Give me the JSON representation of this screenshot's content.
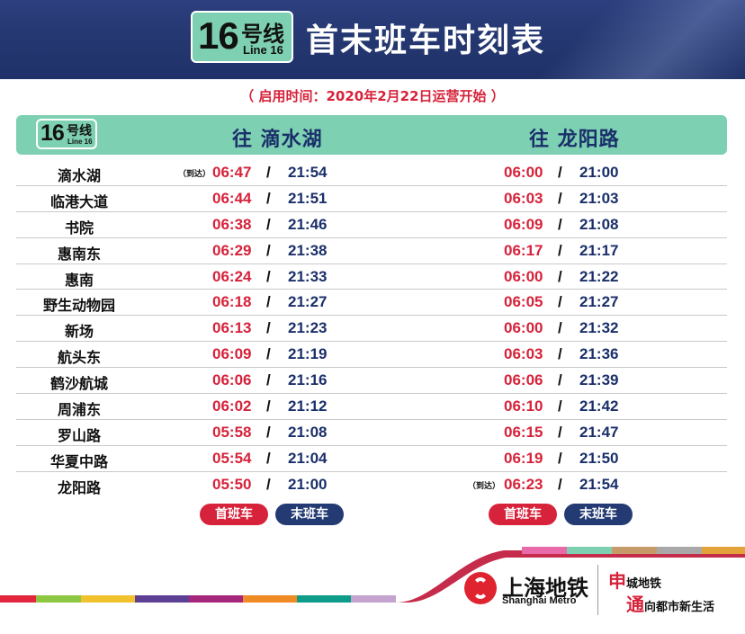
{
  "header": {
    "line_number": "16",
    "line_suffix": "号线",
    "line_english": "Line 16",
    "title": "首末班车时刻表"
  },
  "subtitle": "（ 启用时间：2020年2月22日运营开始 ）",
  "table": {
    "directions": [
      "往 滴水湖",
      "往 龙阳路"
    ],
    "arrive_label": "（到达）",
    "rows": [
      {
        "station": "滴水湖",
        "d1_first": "06:47",
        "d1_last": "21:54",
        "d2_first": "06:00",
        "d2_last": "21:00"
      },
      {
        "station": "临港大道",
        "d1_first": "06:44",
        "d1_last": "21:51",
        "d2_first": "06:03",
        "d2_last": "21:03"
      },
      {
        "station": "书院",
        "d1_first": "06:38",
        "d1_last": "21:46",
        "d2_first": "06:09",
        "d2_last": "21:08"
      },
      {
        "station": "惠南东",
        "d1_first": "06:29",
        "d1_last": "21:38",
        "d2_first": "06:17",
        "d2_last": "21:17"
      },
      {
        "station": "惠南",
        "d1_first": "06:24",
        "d1_last": "21:33",
        "d2_first": "06:00",
        "d2_last": "21:22"
      },
      {
        "station": "野生动物园",
        "d1_first": "06:18",
        "d1_last": "21:27",
        "d2_first": "06:05",
        "d2_last": "21:27"
      },
      {
        "station": "新场",
        "d1_first": "06:13",
        "d1_last": "21:23",
        "d2_first": "06:00",
        "d2_last": "21:32"
      },
      {
        "station": "航头东",
        "d1_first": "06:09",
        "d1_last": "21:19",
        "d2_first": "06:03",
        "d2_last": "21:36"
      },
      {
        "station": "鹤沙航城",
        "d1_first": "06:06",
        "d1_last": "21:16",
        "d2_first": "06:06",
        "d2_last": "21:39"
      },
      {
        "station": "周浦东",
        "d1_first": "06:02",
        "d1_last": "21:12",
        "d2_first": "06:10",
        "d2_last": "21:42"
      },
      {
        "station": "罗山路",
        "d1_first": "05:58",
        "d1_last": "21:08",
        "d2_first": "06:15",
        "d2_last": "21:47"
      },
      {
        "station": "华夏中路",
        "d1_first": "05:54",
        "d1_last": "21:04",
        "d2_first": "06:19",
        "d2_last": "21:50"
      },
      {
        "station": "龙阳路",
        "d1_first": "05:50",
        "d1_last": "21:00",
        "d2_first": "06:23",
        "d2_last": "21:54"
      }
    ]
  },
  "legend": {
    "first_train": "首班车",
    "last_train": "末班车"
  },
  "footer": {
    "brand_cn": "上海地铁",
    "brand_en": "Shanghai Metro",
    "slogan_line1_big": "申",
    "slogan_line1_rest": "城地铁",
    "slogan_line2_big": "通",
    "slogan_line2_rest": "向都市新生活"
  },
  "colors": {
    "header_bg": "#243770",
    "accent_green": "#7ed0b2",
    "first_train_red": "#d6223a",
    "last_train_blue": "#233a72"
  }
}
